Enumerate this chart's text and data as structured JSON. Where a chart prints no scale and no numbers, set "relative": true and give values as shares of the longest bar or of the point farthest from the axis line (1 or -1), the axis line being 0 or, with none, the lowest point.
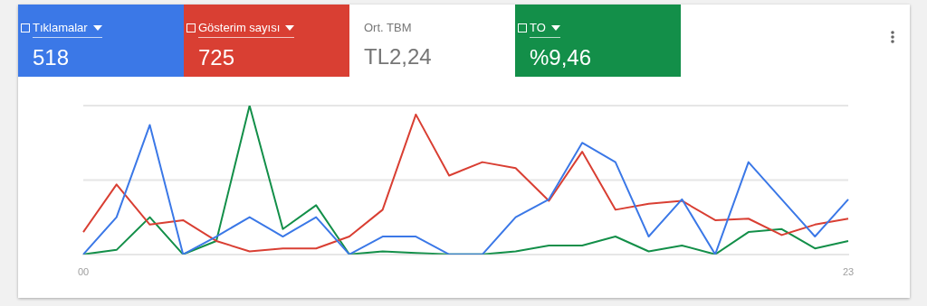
{
  "chart_data": {
    "type": "line",
    "relative": true,
    "legend": "top left",
    "marker": "none",
    "categories": [
      "00",
      null,
      null,
      null,
      null,
      null,
      null,
      null,
      null,
      null,
      null,
      null,
      null,
      null,
      null,
      null,
      null,
      null,
      null,
      null,
      null,
      null,
      null,
      "23"
    ],
    "series": [
      {
        "name": "Tıklamalar",
        "color": "#3b78e7",
        "values": [
          0,
          0.25,
          0.87,
          0,
          0.12,
          0.25,
          0.12,
          0.25,
          0,
          0.12,
          0.12,
          0,
          0,
          0.25,
          0.37,
          0.75,
          0.62,
          0.12,
          0.37,
          0,
          0.62,
          0.37,
          0.12,
          0.37
        ]
      },
      {
        "name": "Gösterim sayısı",
        "color": "#d93f33",
        "values": [
          0.15,
          0.47,
          0.2,
          0.23,
          0.09,
          0.02,
          0.04,
          0.04,
          0.12,
          0.3,
          0.94,
          0.53,
          0.62,
          0.58,
          0.36,
          0.69,
          0.3,
          0.34,
          0.36,
          0.23,
          0.24,
          0.13,
          0.2,
          0.24
        ]
      },
      {
        "name": "TO",
        "color": "#138f49",
        "values": [
          0,
          0.03,
          0.25,
          0,
          0.09,
          1,
          0.17,
          0.33,
          0,
          0.02,
          0.01,
          0,
          0,
          0.02,
          0.06,
          0.06,
          0.12,
          0.02,
          0.06,
          0,
          0.15,
          0.17,
          0.04,
          0.09
        ]
      }
    ],
    "ref_lines": [
      {
        "axis": "y",
        "value": 0.5,
        "color": "#e6e6e6"
      },
      {
        "axis": "y",
        "value": 1,
        "color": "#e6e6e6"
      }
    ],
    "annotations": [
      "518",
      "725",
      "Ort. TBM",
      "TL2,24",
      "%9,46"
    ]
  }
}
